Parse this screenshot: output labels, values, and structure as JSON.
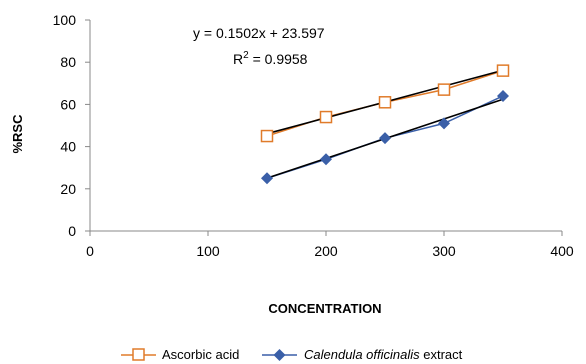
{
  "chart_data": {
    "type": "scatter",
    "xlabel": "CONCENTRATION",
    "ylabel": "%RSC",
    "xlim": [
      0,
      400
    ],
    "ylim": [
      0,
      100
    ],
    "xticks": [
      0,
      100,
      200,
      300,
      400
    ],
    "yticks": [
      0,
      20,
      40,
      60,
      80,
      100
    ],
    "x_tick_labels": [
      "0",
      "100",
      "200",
      "300",
      "400"
    ],
    "y_tick_labels": [
      "0",
      "20",
      "40",
      "60",
      "80",
      "100"
    ],
    "grid": false,
    "legend_position": "bottom",
    "series": [
      {
        "name": "Ascorbic acid",
        "marker": "open-square",
        "color": "#e07b2a",
        "x": [
          150,
          200,
          250,
          300,
          350
        ],
        "y": [
          45,
          54,
          61,
          67,
          76
        ],
        "trendline": {
          "slope": 0.1502,
          "intercept": 23.597,
          "x_range": [
            150,
            350
          ],
          "color": "#000000"
        }
      },
      {
        "name_italic": "Calendula officinalis",
        "name_rest": " extract",
        "marker": "diamond",
        "color": "#3a5fa8",
        "x": [
          150,
          200,
          250,
          300,
          350
        ],
        "y": [
          25,
          34,
          44,
          51,
          64
        ],
        "trendline": {
          "slope": 0.187,
          "intercept": -3.0,
          "x_range": [
            150,
            350
          ],
          "color": "#000000"
        }
      }
    ],
    "annotations": {
      "equation": "y = 0.1502x + 23.597",
      "r2_prefix": "R",
      "r2_sup": "2",
      "r2_rest": " = 0.9958"
    }
  }
}
